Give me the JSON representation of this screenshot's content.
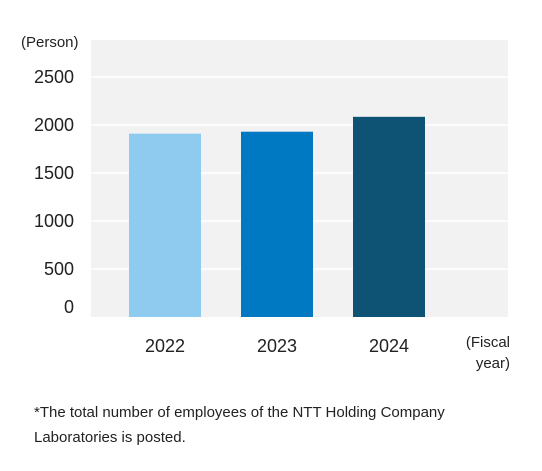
{
  "chart_data": {
    "type": "bar",
    "categories": [
      "2022",
      "2023",
      "2024"
    ],
    "values": [
      1910,
      1930,
      2085
    ],
    "colors": [
      "#8ecbef",
      "#0078c2",
      "#0e5274"
    ],
    "ylim": [
      0,
      2500
    ],
    "yticks": [
      0,
      500,
      1000,
      1500,
      2000,
      2500
    ],
    "ylabel": "(Person)",
    "xlabel_lines": [
      "(Fiscal",
      "year)"
    ],
    "grid": true,
    "plot_background": "#f2f2f2",
    "legend": "none"
  },
  "footnote": "*The total number of employees of the NTT Holding Company Laboratories is posted."
}
